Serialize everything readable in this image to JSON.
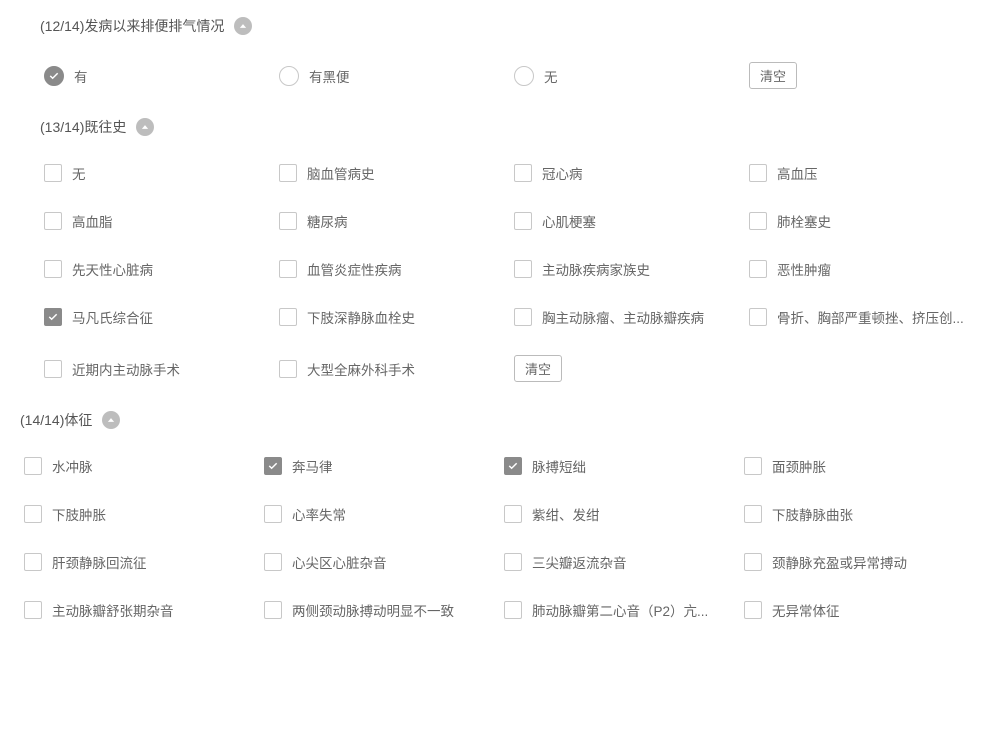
{
  "clear_label": "清空",
  "sections": {
    "s12": {
      "title": "(12/14)发病以来排便排气情况",
      "type": "radio",
      "indented": true,
      "options": [
        {
          "label": "有",
          "checked": true
        },
        {
          "label": "有黑便",
          "checked": false
        },
        {
          "label": "无",
          "checked": false
        }
      ],
      "clear_in_grid": true
    },
    "s13": {
      "title": "(13/14)既往史",
      "type": "checkbox",
      "indented": true,
      "options": [
        {
          "label": "无",
          "checked": false
        },
        {
          "label": "脑血管病史",
          "checked": false
        },
        {
          "label": "冠心病",
          "checked": false
        },
        {
          "label": "高血压",
          "checked": false
        },
        {
          "label": "高血脂",
          "checked": false
        },
        {
          "label": "糖尿病",
          "checked": false
        },
        {
          "label": "心肌梗塞",
          "checked": false
        },
        {
          "label": "肺栓塞史",
          "checked": false
        },
        {
          "label": "先天性心脏病",
          "checked": false
        },
        {
          "label": "血管炎症性疾病",
          "checked": false
        },
        {
          "label": "主动脉疾病家族史",
          "checked": false
        },
        {
          "label": "恶性肿瘤",
          "checked": false
        },
        {
          "label": "马凡氏综合征",
          "checked": true
        },
        {
          "label": "下肢深静脉血栓史",
          "checked": false
        },
        {
          "label": "胸主动脉瘤、主动脉瓣疾病",
          "checked": false
        },
        {
          "label": "骨折、胸部严重顿挫、挤压创...",
          "checked": false
        },
        {
          "label": "近期内主动脉手术",
          "checked": false
        },
        {
          "label": "大型全麻外科手术",
          "checked": false
        }
      ],
      "clear_in_grid": true
    },
    "s14": {
      "title": "(14/14)体征",
      "type": "checkbox",
      "indented": false,
      "options": [
        {
          "label": "水冲脉",
          "checked": false
        },
        {
          "label": "奔马律",
          "checked": true
        },
        {
          "label": "脉搏短绌",
          "checked": true
        },
        {
          "label": "面颈肿胀",
          "checked": false
        },
        {
          "label": "下肢肿胀",
          "checked": false
        },
        {
          "label": "心率失常",
          "checked": false
        },
        {
          "label": "紫绀、发绀",
          "checked": false
        },
        {
          "label": "下肢静脉曲张",
          "checked": false
        },
        {
          "label": "肝颈静脉回流征",
          "checked": false
        },
        {
          "label": "心尖区心脏杂音",
          "checked": false
        },
        {
          "label": "三尖瓣返流杂音",
          "checked": false
        },
        {
          "label": "颈静脉充盈或异常搏动",
          "checked": false
        },
        {
          "label": "主动脉瓣舒张期杂音",
          "checked": false
        },
        {
          "label": "两侧颈动脉搏动明显不一致",
          "checked": false
        },
        {
          "label": "肺动脉瓣第二心音（P2）亢...",
          "checked": false
        },
        {
          "label": "无异常体征",
          "checked": false
        }
      ],
      "clear_in_grid": false
    }
  },
  "colors": {
    "checked_bg": "#8a8a8a",
    "border": "#c8c8c8",
    "text": "#666666"
  }
}
